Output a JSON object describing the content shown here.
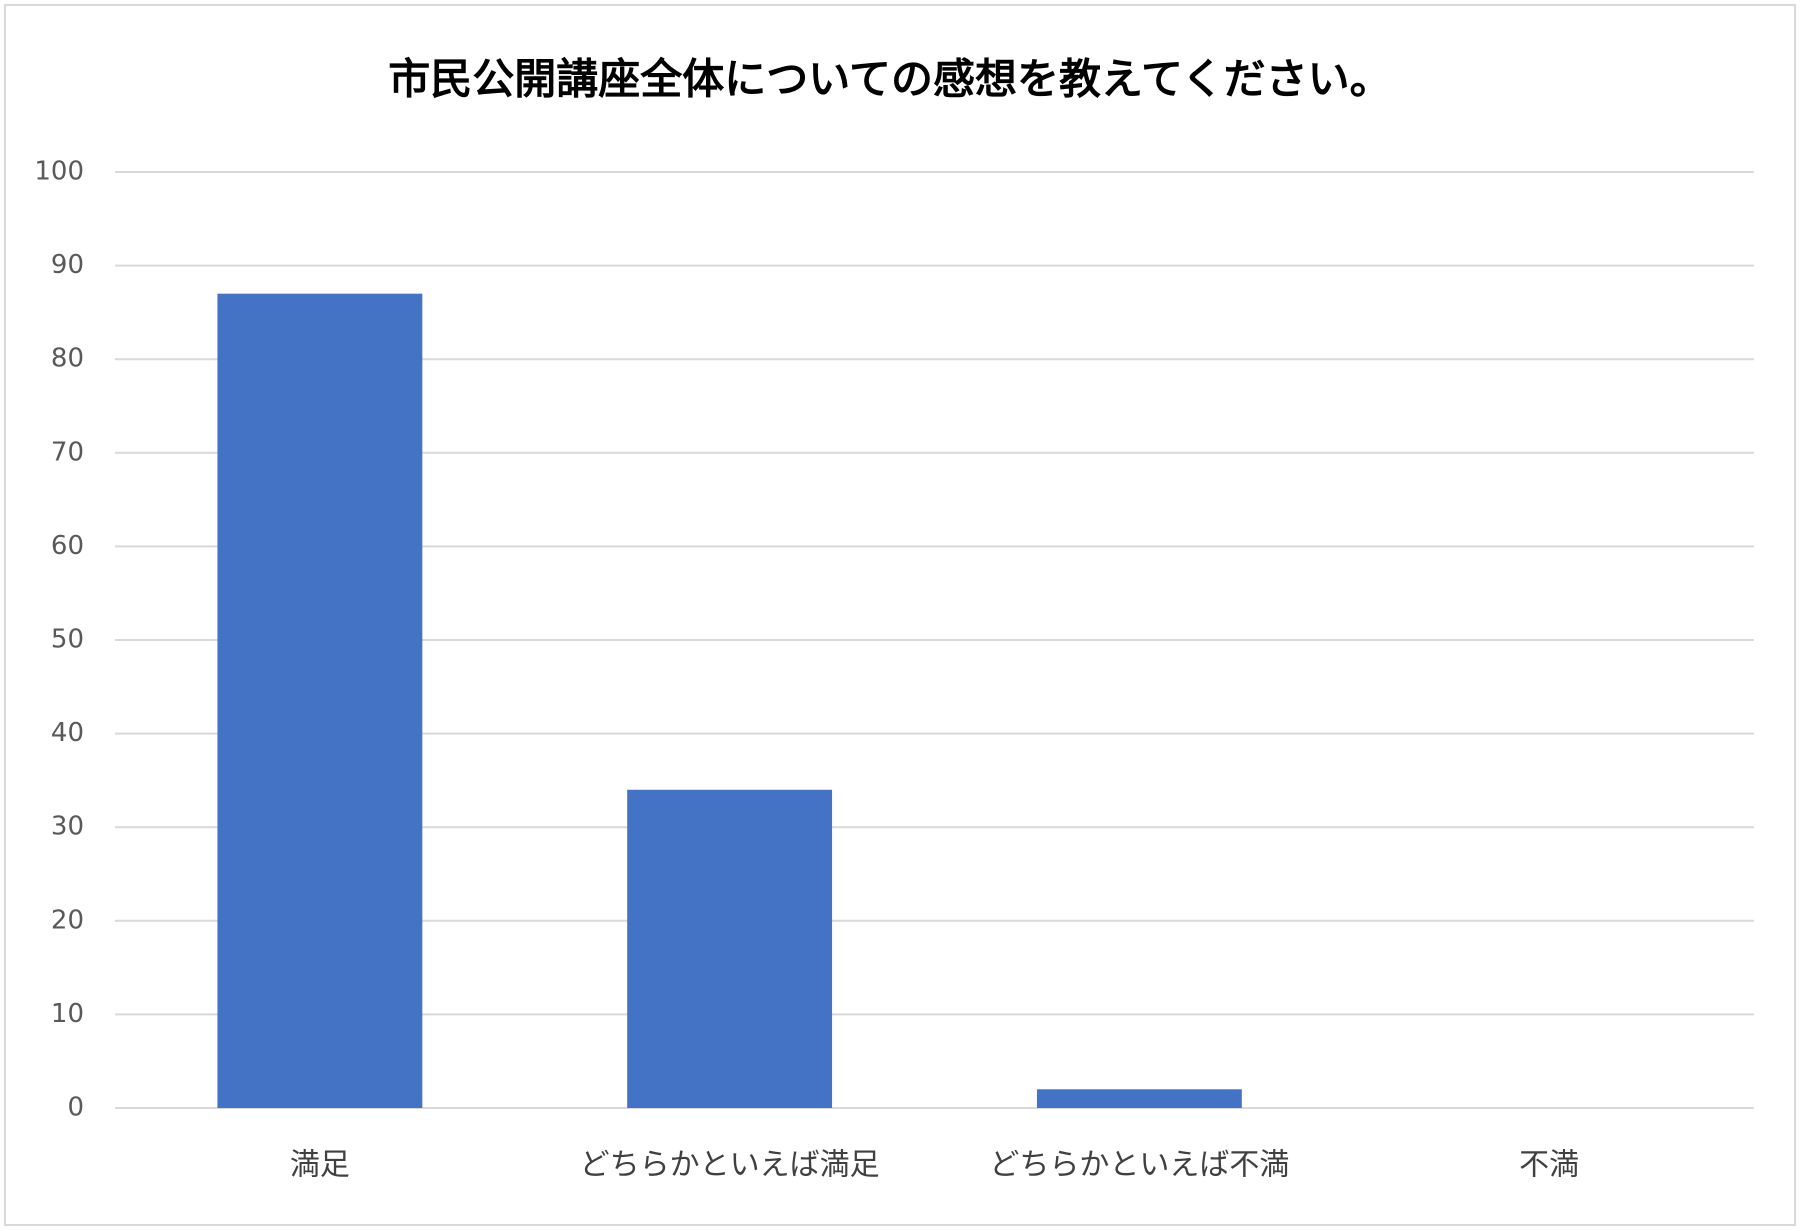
{
  "chart_data": {
    "type": "bar",
    "title": "市民公開講座全体についての感想を教えてください。",
    "categories": [
      "満足",
      "どちらかといえば満足",
      "どちらかといえば不満",
      "不満"
    ],
    "values": [
      87,
      34,
      2,
      0
    ],
    "color": "#4472c4",
    "ylim": [
      0,
      100
    ],
    "yticks": [
      0,
      10,
      20,
      30,
      40,
      50,
      60,
      70,
      80,
      90,
      100
    ],
    "grid": true
  }
}
